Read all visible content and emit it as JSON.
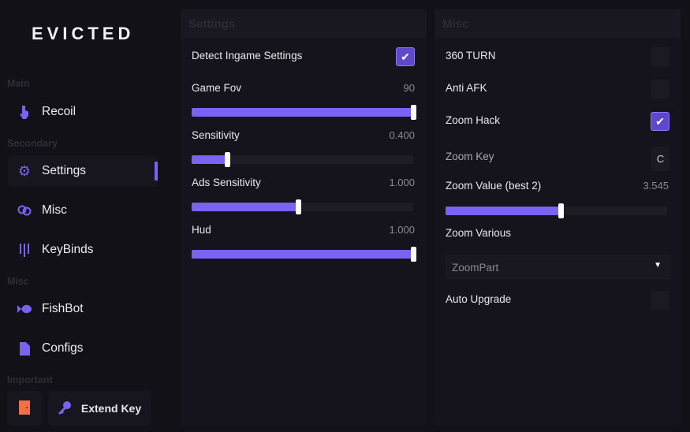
{
  "app": {
    "title": "EVICTED"
  },
  "sidebar": {
    "sections": [
      "Main",
      "Secondary",
      "Misc",
      "Important"
    ],
    "items": [
      {
        "label": "Recoil",
        "icon": "pointer-hand-icon"
      },
      {
        "label": "Settings",
        "icon": "gear-icon"
      },
      {
        "label": "Misc",
        "icon": "link-rings-icon"
      },
      {
        "label": "KeyBinds",
        "icon": "keypad-icon"
      },
      {
        "label": "FishBot",
        "icon": "fish-icon"
      },
      {
        "label": "Configs",
        "icon": "file-icon"
      }
    ],
    "extend_key": "Extend Key",
    "colors": {
      "accent": "#7b62f5",
      "exit": "#f0704a"
    }
  },
  "settings": {
    "title": "Settings",
    "detect_label": "Detect Ingame Settings",
    "detect_checked": true,
    "sliders": [
      {
        "label": "Game Fov",
        "value": "90",
        "fraction": 1.0
      },
      {
        "label": "Sensitivity",
        "value": "0.400",
        "fraction": 0.16
      },
      {
        "label": "Ads Sensitivity",
        "value": "1.000",
        "fraction": 0.48
      },
      {
        "label": "Hud",
        "value": "1.000",
        "fraction": 1.0
      }
    ]
  },
  "misc": {
    "title": "Misc",
    "turn_label": "360 TURN",
    "turn_checked": false,
    "afk_label": "Anti AFK",
    "afk_checked": false,
    "zoom_label": "Zoom Hack",
    "zoom_checked": true,
    "zoom_key_label": "Zoom Key",
    "zoom_key": "C",
    "zoom_value_label": "Zoom Value (best 2)",
    "zoom_value": "3.545",
    "zoom_fraction": 0.52,
    "zoom_various_label": "Zoom Various",
    "zoom_various_value": "ZoomPart",
    "upgrade_label": "Auto Upgrade",
    "upgrade_checked": false
  }
}
